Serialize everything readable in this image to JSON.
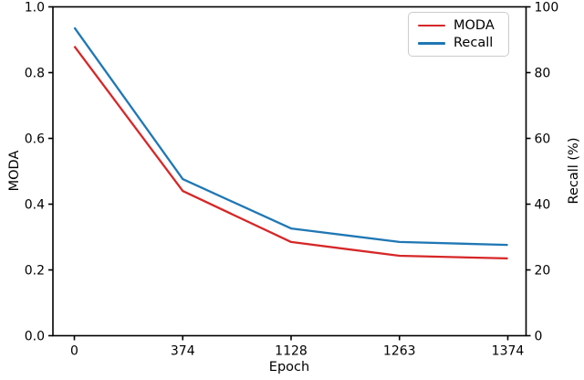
{
  "figure": {
    "background": "#ffffff",
    "spine_color": "#000000",
    "text_color": "#000000"
  },
  "chart_data": {
    "type": "line",
    "title": "",
    "xlabel": "Epoch",
    "ylabel_left": "MODA",
    "ylabel_right": "Recall (%)",
    "categories": [
      "0",
      "374",
      "1128",
      "1263",
      "1374"
    ],
    "x_values": [
      0,
      374,
      1128,
      1263,
      1374
    ],
    "series": [
      {
        "name": "MODA",
        "axis": "left",
        "color": "#d62728",
        "values": [
          0.88,
          0.44,
          0.285,
          0.243,
          0.235
        ]
      },
      {
        "name": "Recall",
        "axis": "right",
        "color": "#1f77b4",
        "values": [
          93.7,
          47.6,
          32.6,
          28.5,
          27.6
        ]
      }
    ],
    "left_axis": {
      "min": 0,
      "max": 1,
      "tick_values": [
        0,
        0.2,
        0.4,
        0.6,
        0.8,
        1.0
      ],
      "tick_labels": [
        "0.0",
        "0.2",
        "0.4",
        "0.6",
        "0.8",
        "1.0"
      ]
    },
    "right_axis": {
      "min": 0,
      "max": 100,
      "tick_values": [
        0,
        20,
        40,
        60,
        80,
        100
      ],
      "tick_labels": [
        "0",
        "20",
        "40",
        "60",
        "80",
        "100"
      ]
    },
    "legend": {
      "position": "upper right",
      "entries": [
        "MODA",
        "Recall"
      ]
    },
    "grid": false,
    "markers": false
  }
}
